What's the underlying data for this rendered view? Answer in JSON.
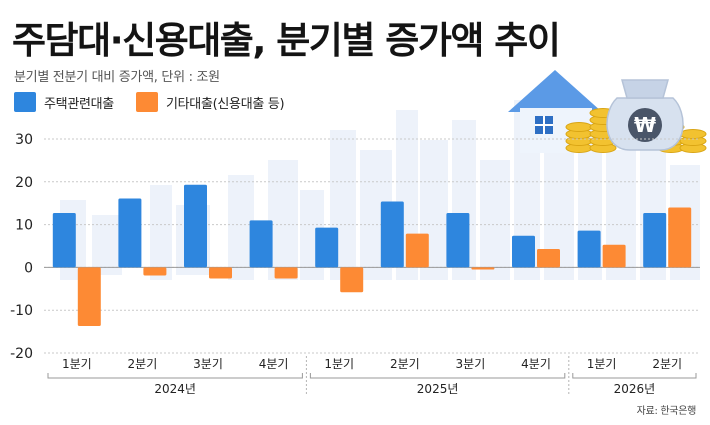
{
  "title": "주담대·신용대출, 분기별 증가액 추이",
  "subtitle": "분기별 전분기 대비 증가액, 단위 : 조원",
  "source": "자료: 한국은행",
  "colors": {
    "housing": "#2e86de",
    "other": "#fd8a34",
    "grid": "#c9c9c9",
    "axis_text": "#222222"
  },
  "icons": [
    "house-icon",
    "won-money-bag-icon",
    "coin-stack-icon",
    "city-skyline"
  ],
  "legend": [
    {
      "label": "주택관련대출",
      "color": "#2e86de"
    },
    {
      "label": "기타대출(신용대출 등)",
      "color": "#fd8a34"
    }
  ],
  "chart_data": {
    "type": "bar",
    "title": "주담대·신용대출, 분기별 증가액 추이",
    "subtitle": "분기별 전분기 대비 증가액, 단위 : 조원",
    "categories": [
      "1분기",
      "2분기",
      "3분기",
      "4분기",
      "1분기",
      "2분기",
      "3분기",
      "4분기",
      "1분기",
      "2분기"
    ],
    "groups": [
      {
        "label": "2024년",
        "categories": [
          "1분기",
          "2분기",
          "3분기",
          "4분기"
        ]
      },
      {
        "label": "2025년",
        "categories": [
          "1분기",
          "2분기",
          "3분기",
          "4분기"
        ]
      },
      {
        "label": "2026년",
        "categories": [
          "1분기",
          "2분기"
        ]
      }
    ],
    "series": [
      {
        "name": "주택관련대출",
        "color": "#2e86de",
        "values": [
          12.7,
          16.1,
          19.3,
          11.0,
          9.3,
          15.4,
          12.7,
          7.4,
          8.6,
          12.7
        ]
      },
      {
        "name": "기타대출(신용대출 등)",
        "color": "#fd8a34",
        "values": [
          -13.7,
          -1.9,
          -2.6,
          -2.6,
          -5.8,
          7.9,
          -0.5,
          4.3,
          5.3,
          14.0
        ]
      }
    ],
    "ylim": [
      -20,
      30
    ],
    "yticks": [
      -20,
      -10,
      0,
      10,
      20,
      30
    ],
    "xlabel": "",
    "ylabel": "",
    "grid": true,
    "legend_position": "top-left"
  }
}
